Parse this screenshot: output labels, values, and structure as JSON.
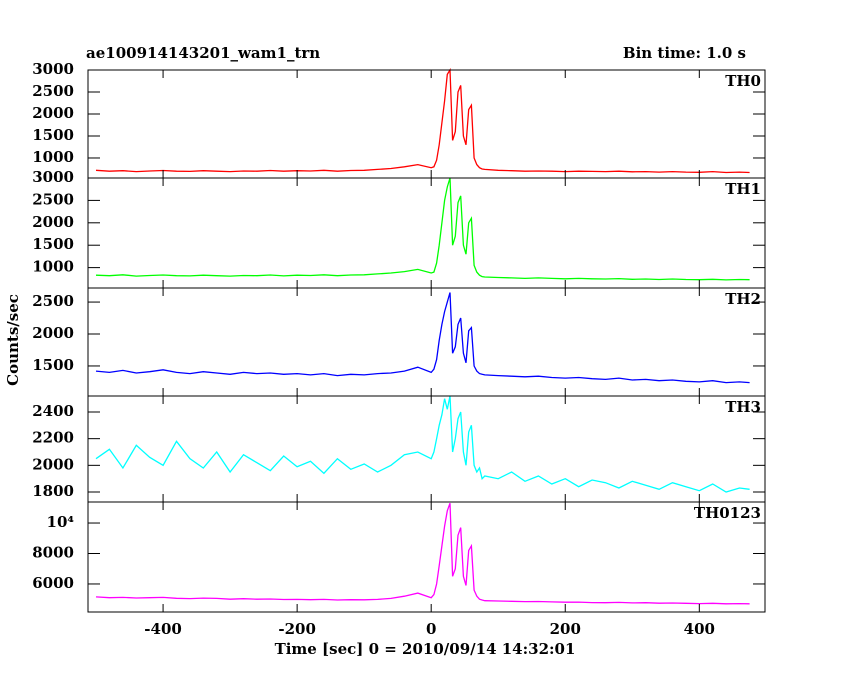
{
  "chart_data": {
    "type": "line",
    "title": "ae100914143201_wam1_trn",
    "subtitle": "Bin time: 1.0 s",
    "xlabel": "Time [sec] 0 = 2010/09/14 14:32:01",
    "ylabel": "Counts/sec",
    "xlim": [
      -512,
      498
    ],
    "xticks": [
      -400,
      -200,
      0,
      200,
      400
    ],
    "x": [
      -500,
      -480,
      -460,
      -440,
      -420,
      -400,
      -380,
      -360,
      -340,
      -320,
      -300,
      -280,
      -260,
      -240,
      -220,
      -200,
      -180,
      -160,
      -140,
      -120,
      -100,
      -80,
      -60,
      -40,
      -20,
      0,
      4,
      8,
      12,
      16,
      20,
      24,
      28,
      32,
      36,
      40,
      44,
      48,
      52,
      56,
      60,
      64,
      68,
      72,
      76,
      80,
      100,
      120,
      140,
      160,
      180,
      200,
      220,
      240,
      260,
      280,
      300,
      320,
      340,
      360,
      380,
      400,
      420,
      440,
      460,
      475
    ],
    "series": [
      {
        "name": "TH0",
        "color": "#ff0000",
        "ylim": [
          545,
          3000
        ],
        "yticks": [
          1000,
          1500,
          2000,
          2500,
          3000
        ],
        "values": [
          720,
          700,
          710,
          690,
          705,
          715,
          700,
          695,
          710,
          700,
          690,
          705,
          700,
          715,
          700,
          710,
          705,
          720,
          700,
          715,
          720,
          740,
          760,
          800,
          850,
          780,
          800,
          950,
          1300,
          1800,
          2300,
          2900,
          3000,
          1400,
          1600,
          2500,
          2650,
          1500,
          1300,
          2100,
          2200,
          1000,
          850,
          780,
          750,
          740,
          720,
          710,
          700,
          705,
          700,
          690,
          700,
          695,
          690,
          700,
          685,
          690,
          680,
          690,
          680,
          675,
          690,
          670,
          680,
          670
        ]
      },
      {
        "name": "TH1",
        "color": "#00ff00",
        "ylim": [
          545,
          3000
        ],
        "yticks": [
          1000,
          1500,
          2000,
          2500,
          3000
        ],
        "values": [
          830,
          820,
          840,
          810,
          825,
          835,
          820,
          815,
          830,
          820,
          810,
          825,
          820,
          835,
          815,
          830,
          825,
          840,
          820,
          835,
          840,
          860,
          880,
          910,
          960,
          880,
          900,
          1100,
          1500,
          2000,
          2500,
          2800,
          3000,
          1500,
          1700,
          2450,
          2600,
          1500,
          1300,
          2000,
          2100,
          1050,
          900,
          830,
          800,
          790,
          780,
          770,
          760,
          770,
          760,
          750,
          760,
          750,
          745,
          755,
          740,
          745,
          735,
          745,
          735,
          730,
          740,
          725,
          735,
          730
        ]
      },
      {
        "name": "TH2",
        "color": "#0000ff",
        "ylim": [
          1030,
          2720
        ],
        "yticks": [
          1500,
          2000,
          2500
        ],
        "values": [
          1420,
          1400,
          1430,
          1390,
          1410,
          1440,
          1400,
          1380,
          1410,
          1390,
          1370,
          1400,
          1380,
          1390,
          1370,
          1380,
          1360,
          1380,
          1350,
          1370,
          1360,
          1380,
          1390,
          1420,
          1480,
          1400,
          1450,
          1600,
          1900,
          2150,
          2350,
          2500,
          2650,
          1700,
          1800,
          2150,
          2250,
          1700,
          1550,
          2050,
          2100,
          1500,
          1420,
          1380,
          1370,
          1360,
          1350,
          1340,
          1330,
          1340,
          1320,
          1310,
          1320,
          1300,
          1290,
          1310,
          1280,
          1290,
          1270,
          1280,
          1260,
          1250,
          1270,
          1240,
          1250,
          1240
        ]
      },
      {
        "name": "TH3",
        "color": "#00ffff",
        "ylim": [
          1725,
          2520
        ],
        "yticks": [
          1800,
          2000,
          2200,
          2400
        ],
        "values": [
          2050,
          2120,
          1980,
          2150,
          2060,
          2000,
          2180,
          2050,
          1980,
          2100,
          1950,
          2080,
          2020,
          1960,
          2070,
          1990,
          2030,
          1940,
          2050,
          1970,
          2010,
          1950,
          2000,
          2080,
          2100,
          2050,
          2100,
          2200,
          2300,
          2380,
          2500,
          2420,
          2520,
          2100,
          2200,
          2350,
          2400,
          2100,
          2000,
          2250,
          2300,
          2000,
          1950,
          1980,
          1900,
          1920,
          1900,
          1950,
          1880,
          1920,
          1860,
          1900,
          1840,
          1890,
          1870,
          1830,
          1880,
          1850,
          1820,
          1870,
          1840,
          1810,
          1860,
          1800,
          1830,
          1820
        ]
      },
      {
        "name": "TH0123",
        "color": "#ff00ff",
        "ylim": [
          4160,
          11380
        ],
        "yticks": [
          6000,
          8000,
          {
            "value": 10000,
            "label": "10⁴"
          }
        ],
        "values": [
          5150,
          5100,
          5120,
          5080,
          5100,
          5120,
          5060,
          5040,
          5070,
          5050,
          5000,
          5030,
          5000,
          5010,
          4980,
          4990,
          4970,
          4990,
          4950,
          4970,
          4960,
          4990,
          5050,
          5200,
          5400,
          5100,
          5300,
          6000,
          7200,
          8500,
          9800,
          10800,
          11300,
          6500,
          7000,
          9200,
          9700,
          6500,
          5900,
          8200,
          8500,
          5600,
          5200,
          5000,
          4950,
          4900,
          4880,
          4860,
          4840,
          4850,
          4820,
          4800,
          4810,
          4780,
          4770,
          4790,
          4760,
          4770,
          4740,
          4750,
          4730,
          4710,
          4730,
          4700,
          4710,
          4700
        ]
      }
    ]
  }
}
